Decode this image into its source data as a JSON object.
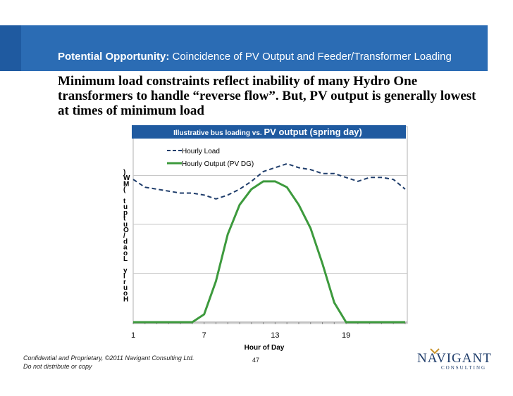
{
  "slide": {
    "heading_bold": "Potential Opportunity:",
    "heading_rest": " Coincidence of PV Output and Feeder/Transformer Loading",
    "body": "Minimum load constraints reflect inability of many Hydro One transformers to handle “reverse flow”.  But, PV output is generally lowest at times of minimum load",
    "footer_line1": "Confidential and Proprietary, ©2011 Navigant Consulting Ltd.",
    "footer_line2": "Do not distribute or copy",
    "page_number": "47",
    "logo_word": "NAVIGANT",
    "logo_sub": "CONSULTING"
  },
  "chart_data": {
    "type": "line",
    "title_small": "Illustrative bus loading vs. ",
    "title_big": "PV output (spring day)",
    "xlabel": "Hour of Day",
    "ylabel": "Hourly Load/Output (MW)",
    "x_ticks": [
      "1",
      "7",
      "13",
      "19"
    ],
    "x_tick_values": [
      1,
      7,
      13,
      19
    ],
    "xlim": [
      1,
      24
    ],
    "ylim": [
      0,
      100
    ],
    "grid": true,
    "legend_position": "top-center",
    "x": [
      1,
      2,
      3,
      4,
      5,
      6,
      7,
      8,
      9,
      10,
      11,
      12,
      13,
      14,
      15,
      16,
      17,
      18,
      19,
      20,
      21,
      22,
      23,
      24
    ],
    "series": [
      {
        "name": "Hourly Load",
        "style": "dashed",
        "color": "#1f3d6b",
        "values": [
          73,
          69,
          68,
          67,
          66,
          66,
          65,
          63,
          65,
          68,
          72,
          77,
          79,
          81,
          79,
          78,
          76,
          76,
          74,
          72,
          74,
          74,
          73,
          68
        ]
      },
      {
        "name": "Hourly Output (PV DG)",
        "style": "solid",
        "color": "#3d9a3d",
        "values": [
          0,
          0,
          0,
          0,
          0,
          0,
          4,
          21,
          45,
          60,
          68,
          72,
          72,
          69,
          60,
          48,
          30,
          10,
          0,
          0,
          0,
          0,
          0,
          0
        ]
      }
    ]
  }
}
